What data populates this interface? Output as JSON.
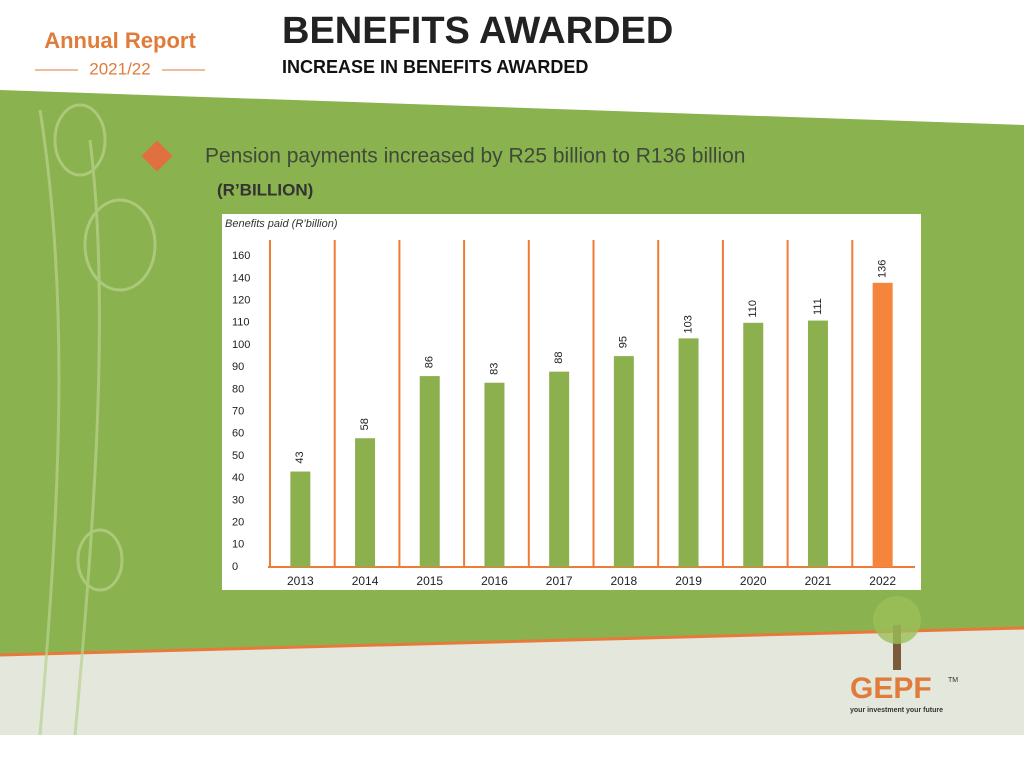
{
  "header": {
    "logo_title": "Annual Report",
    "logo_year": "2021/22",
    "title": "BENEFITS AWARDED",
    "subtitle": "INCREASE IN BENEFITS AWARDED"
  },
  "bullet": "Pension payments increased by R25 billion to R136 billion",
  "unit_note": "(R’BILLION)",
  "footer_logo": {
    "name": "GEPF",
    "mark": "TM",
    "tagline": "your investment  your future"
  },
  "chart_data": {
    "type": "bar",
    "title": "Benefits paid (R’billion)",
    "categories": [
      "2013",
      "2014",
      "2015",
      "2016",
      "2017",
      "2018",
      "2019",
      "2020",
      "2021",
      "2022"
    ],
    "values": [
      43,
      58,
      86,
      83,
      88,
      95,
      103,
      110,
      111,
      136
    ],
    "colors": [
      "#8db04f",
      "#8db04f",
      "#8db04f",
      "#8db04f",
      "#8db04f",
      "#8db04f",
      "#8db04f",
      "#8db04f",
      "#8db04f",
      "#f5843c"
    ],
    "ylim": [
      0,
      160
    ],
    "yticks": [
      0,
      10,
      20,
      30,
      40,
      50,
      60,
      70,
      80,
      90,
      100,
      110,
      120,
      140,
      160
    ],
    "grid": false
  }
}
